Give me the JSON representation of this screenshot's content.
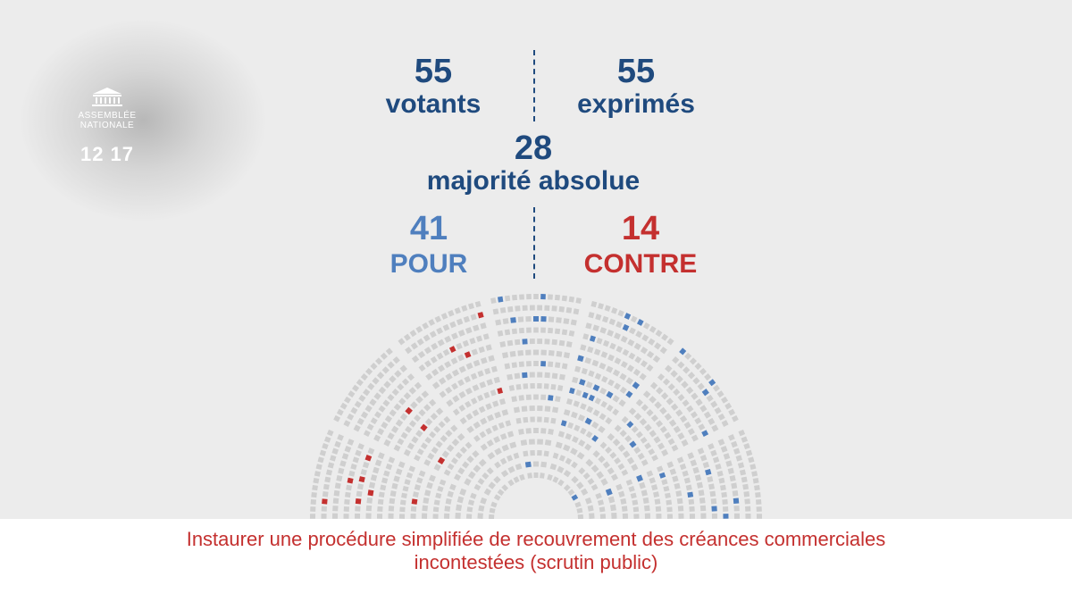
{
  "logo": {
    "name_line1": "ASSEMBLÉE",
    "name_line2": "NATIONALE",
    "legislature": "12 17"
  },
  "votants": {
    "count": "55",
    "label": "votants"
  },
  "exprimes": {
    "count": "55",
    "label": "exprimés"
  },
  "majorite": {
    "count": "28",
    "label": "majorité absolue"
  },
  "pour": {
    "count": "41",
    "label": "POUR"
  },
  "contre": {
    "count": "14",
    "label": "CONTRE"
  },
  "hemicycle_vote": {
    "pour": 41,
    "contre": 14
  },
  "caption": {
    "line1": "Instaurer une procédure simplifiée de recouvrement des créances commerciales",
    "line2": "incontestées (scrutin public)"
  },
  "colors": {
    "dark_blue": "#1f4a7e",
    "pour_blue": "#4f7fbe",
    "contre_red": "#c4302f",
    "seat_empty": "#cfcfcf"
  }
}
